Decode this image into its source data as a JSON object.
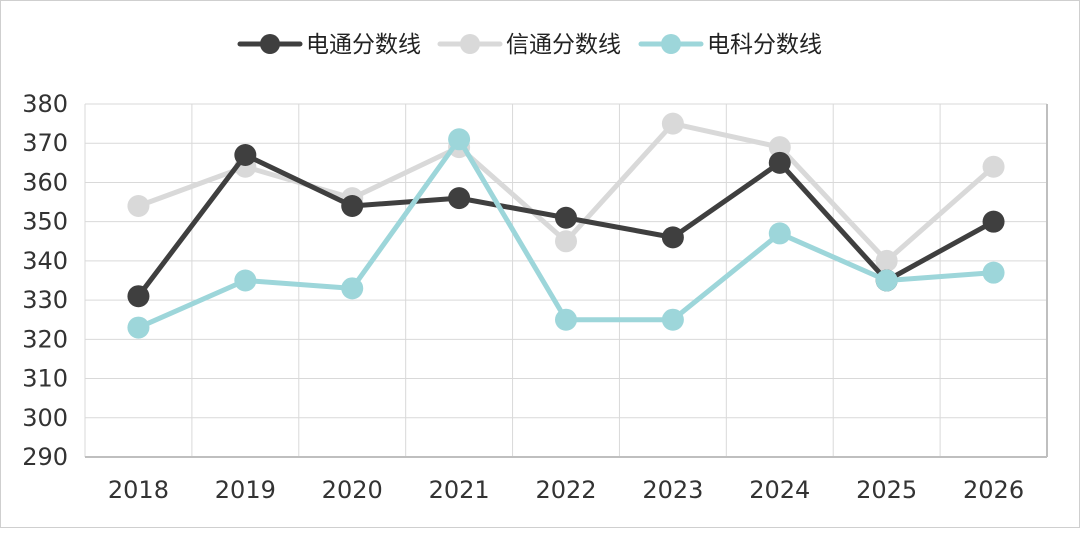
{
  "chart_data": {
    "type": "line",
    "title": "",
    "xlabel": "",
    "ylabel": "",
    "categories": [
      "2018",
      "2019",
      "2020",
      "2021",
      "2022",
      "2023",
      "2024",
      "2025",
      "2026"
    ],
    "ylim": [
      290,
      380
    ],
    "yticks": [
      290,
      300,
      310,
      320,
      330,
      340,
      350,
      360,
      370,
      380
    ],
    "grid": true,
    "legend_position": "top-center",
    "series": [
      {
        "name": "电通分数线",
        "color": "#3f3f3f",
        "values": [
          331,
          367,
          354,
          356,
          351,
          346,
          365,
          335,
          350
        ]
      },
      {
        "name": "信通分数线",
        "color": "#d9d9d9",
        "values": [
          354,
          364,
          356,
          369,
          345,
          375,
          369,
          340,
          364
        ]
      },
      {
        "name": "电科分数线",
        "color": "#9dd6da",
        "values": [
          323,
          335,
          333,
          371,
          325,
          325,
          347,
          335,
          337
        ]
      }
    ]
  }
}
